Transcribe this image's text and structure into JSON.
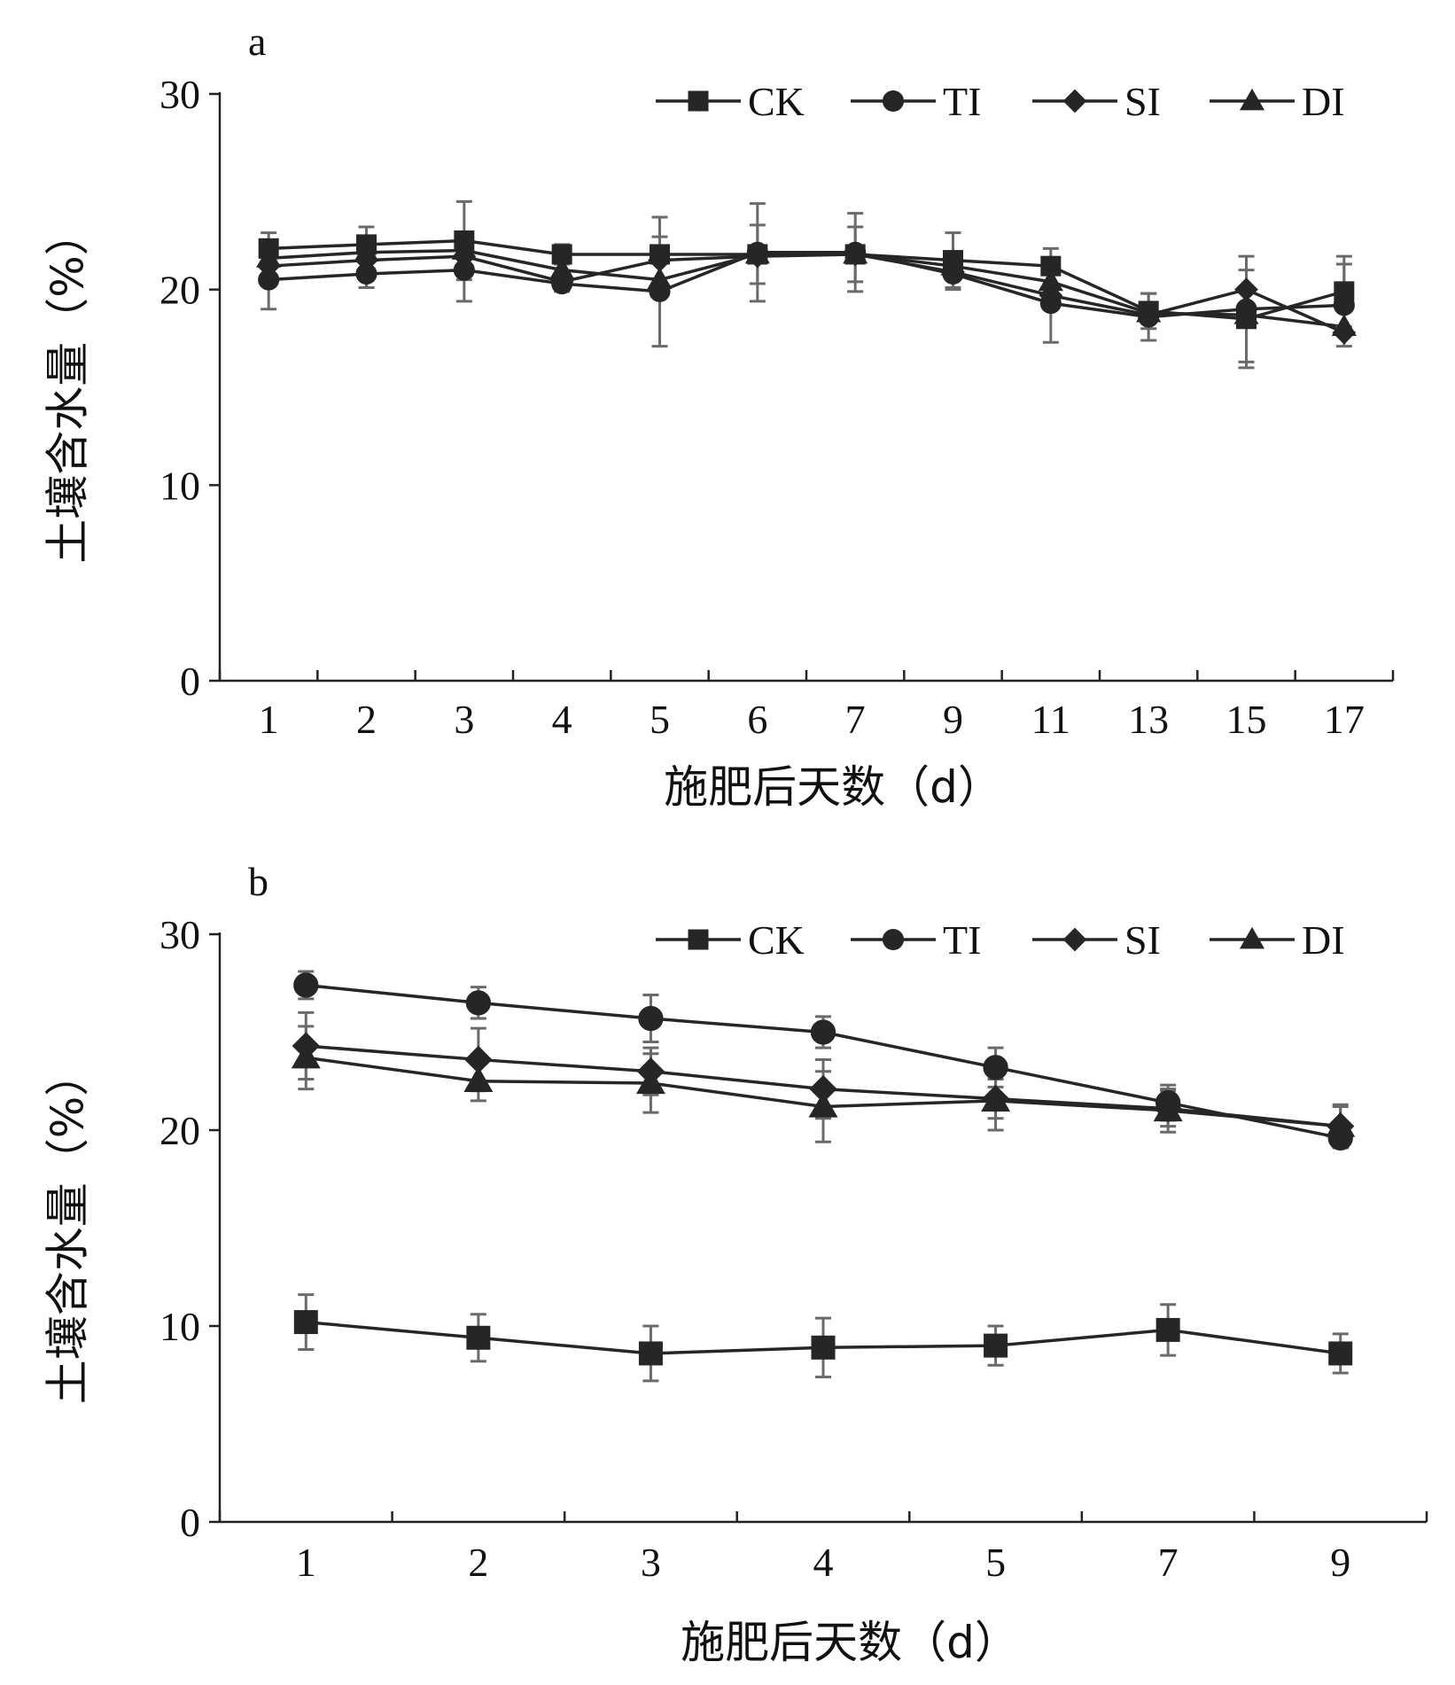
{
  "chart_data": [
    {
      "type": "line",
      "panel_label": "a",
      "categories": [
        "1",
        "2",
        "3",
        "4",
        "5",
        "6",
        "7",
        "9",
        "11",
        "13",
        "15",
        "17"
      ],
      "xlabel": "施肥后天数（d）",
      "ylabel": "土壤含水量（%）",
      "ylim": [
        0,
        30
      ],
      "yticks": [
        0,
        10,
        20,
        30
      ],
      "legend_position": "top-right",
      "series": [
        {
          "name": "CK",
          "marker": "square",
          "values": [
            22.1,
            22.3,
            22.5,
            21.8,
            21.8,
            21.8,
            21.8,
            21.5,
            21.2,
            18.9,
            18.5,
            19.9
          ],
          "errors": [
            0.8,
            0.9,
            2.0,
            0.5,
            1.9,
            1.5,
            1.4,
            1.4,
            0.9,
            0.9,
            2.5,
            1.8
          ]
        },
        {
          "name": "TI",
          "marker": "circle",
          "values": [
            20.5,
            20.8,
            21.0,
            20.3,
            19.9,
            21.9,
            21.9,
            20.8,
            19.3,
            18.6,
            19.0,
            19.2
          ],
          "errors": [
            1.5,
            0.7,
            1.6,
            0.4,
            2.8,
            2.5,
            2.0,
            0.8,
            2.0,
            1.2,
            2.7,
            2.1
          ]
        },
        {
          "name": "SI",
          "marker": "diamond",
          "values": [
            21.2,
            21.5,
            21.7,
            20.4,
            21.5,
            21.7,
            21.8,
            20.9,
            19.7,
            18.7,
            20.0,
            17.8
          ]
        },
        {
          "name": "DI",
          "marker": "triangle",
          "values": [
            21.6,
            21.9,
            22.0,
            21.0,
            20.5,
            21.8,
            21.8,
            21.2,
            20.4,
            18.8,
            18.7,
            18.1
          ]
        }
      ]
    },
    {
      "type": "line",
      "panel_label": "b",
      "categories": [
        "1",
        "2",
        "3",
        "4",
        "5",
        "7",
        "9"
      ],
      "xlabel": "施肥后天数（d）",
      "ylabel": "土壤含水量（%）",
      "ylim": [
        0,
        30
      ],
      "yticks": [
        0,
        10,
        20,
        30
      ],
      "legend_position": "top-right",
      "series": [
        {
          "name": "CK",
          "marker": "square",
          "values": [
            10.2,
            9.4,
            8.6,
            8.9,
            9.0,
            9.8,
            8.6
          ],
          "errors": [
            1.4,
            1.2,
            1.4,
            1.5,
            1.0,
            1.3,
            1.0
          ]
        },
        {
          "name": "TI",
          "marker": "circle",
          "values": [
            27.4,
            26.5,
            25.7,
            25.0,
            23.2,
            21.4,
            19.6
          ],
          "errors": [
            0.7,
            0.8,
            1.2,
            0.8,
            1.0,
            0.9,
            0.5
          ]
        },
        {
          "name": "SI",
          "marker": "diamond",
          "values": [
            24.3,
            23.6,
            23.0,
            22.1,
            21.6,
            21.1,
            20.2
          ],
          "errors": [
            1.7,
            1.6,
            1.2,
            1.5,
            1.0,
            0.9,
            1.1
          ]
        },
        {
          "name": "DI",
          "marker": "triangle",
          "values": [
            23.7,
            22.5,
            22.4,
            21.2,
            21.5,
            21.0,
            20.2
          ],
          "errors": [
            1.6,
            1.0,
            1.5,
            1.8,
            1.5,
            1.1,
            1.0
          ]
        }
      ]
    }
  ]
}
